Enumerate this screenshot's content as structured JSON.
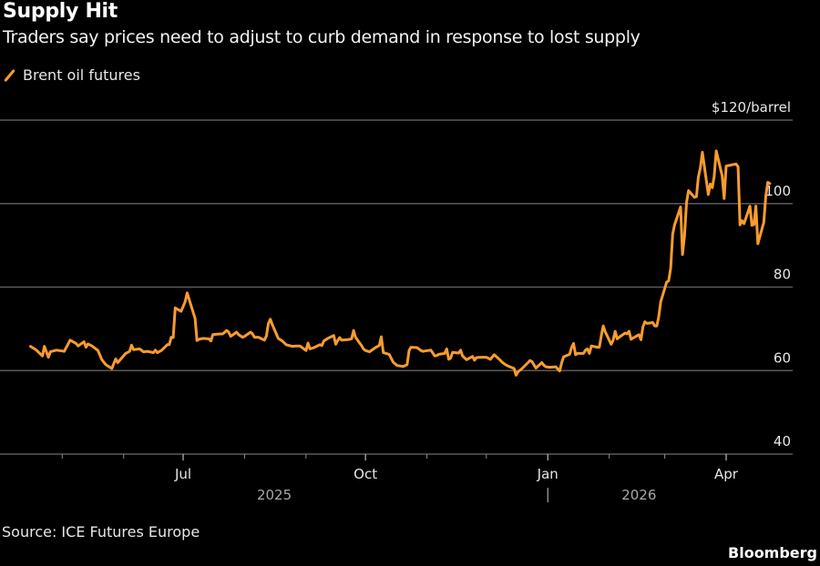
{
  "header": {
    "title": "Supply Hit",
    "subtitle": "Traders say prices need to adjust to curb demand in response to lost supply"
  },
  "footer": {
    "source": "Source: ICE Futures Europe",
    "brand": "Bloomberg"
  },
  "colors": {
    "series": "#f99b2f",
    "grid": "#5a5a5a",
    "background": "#000000"
  },
  "chart_data": {
    "type": "line",
    "title": "Supply Hit",
    "subtitle": "Traders say prices need to adjust to curb demand in response to lost supply",
    "xlabel": "",
    "ylabel": "$/barrel",
    "y_unit_label": "$120/barrel",
    "ylim": [
      40,
      120
    ],
    "yticks": [
      {
        "value": 120,
        "label": "$120/barrel"
      },
      {
        "value": 100,
        "label": "100"
      },
      {
        "value": 80,
        "label": "80"
      },
      {
        "value": 60,
        "label": "60"
      },
      {
        "value": 40,
        "label": "40"
      }
    ],
    "xlim": [
      "2025-04-13",
      "2026-04-26"
    ],
    "xticks_minor": [
      "2025-05-01",
      "2025-06-01",
      "2025-08-01",
      "2025-09-01",
      "2025-11-01",
      "2025-12-01",
      "2026-02-01",
      "2026-03-01"
    ],
    "xticks_major": [
      {
        "date": "2025-07-01",
        "label": "Jul"
      },
      {
        "date": "2025-10-01",
        "label": "Oct"
      },
      {
        "date": "2026-01-01",
        "label": "Jan"
      },
      {
        "date": "2026-04-01",
        "label": "Apr"
      }
    ],
    "year_labels": [
      {
        "date": "2025-08-16",
        "label": "2025"
      },
      {
        "date": "2026-02-16",
        "label": "2026"
      }
    ],
    "year_divider": "2026-01-01",
    "grid": true,
    "legend": {
      "position": "top-left",
      "entries": [
        "Brent oil futures"
      ]
    },
    "series": [
      {
        "name": "Brent oil futures",
        "points": [
          [
            "2025-04-15",
            65.8
          ],
          [
            "2025-04-18",
            64.9
          ],
          [
            "2025-04-21",
            63.5
          ],
          [
            "2025-04-22",
            65.8
          ],
          [
            "2025-04-24",
            63.2
          ],
          [
            "2025-04-25",
            64.5
          ],
          [
            "2025-04-28",
            64.9
          ],
          [
            "2025-05-01",
            64.7
          ],
          [
            "2025-05-02",
            64.6
          ],
          [
            "2025-05-05",
            67.3
          ],
          [
            "2025-05-08",
            66.5
          ],
          [
            "2025-05-09",
            65.9
          ],
          [
            "2025-05-12",
            66.9
          ],
          [
            "2025-05-13",
            65.6
          ],
          [
            "2025-05-14",
            66.4
          ],
          [
            "2025-05-16",
            65.9
          ],
          [
            "2025-05-19",
            64.8
          ],
          [
            "2025-05-21",
            62.6
          ],
          [
            "2025-05-23",
            61.4
          ],
          [
            "2025-05-26",
            60.5
          ],
          [
            "2025-05-28",
            62.8
          ],
          [
            "2025-05-29",
            61.9
          ],
          [
            "2025-06-02",
            64.1
          ],
          [
            "2025-06-04",
            64.6
          ],
          [
            "2025-06-05",
            66.1
          ],
          [
            "2025-06-06",
            65.0
          ],
          [
            "2025-06-09",
            65.2
          ],
          [
            "2025-06-11",
            64.5
          ],
          [
            "2025-06-13",
            64.6
          ],
          [
            "2025-06-16",
            64.3
          ],
          [
            "2025-06-17",
            64.9
          ],
          [
            "2025-06-18",
            64.3
          ],
          [
            "2025-06-20",
            64.8
          ],
          [
            "2025-06-23",
            66.2
          ],
          [
            "2025-06-24",
            66.2
          ],
          [
            "2025-06-25",
            68.0
          ],
          [
            "2025-06-26",
            67.9
          ],
          [
            "2025-06-27",
            75.0
          ],
          [
            "2025-06-30",
            74.2
          ],
          [
            "2025-07-02",
            76.5
          ],
          [
            "2025-07-03",
            78.6
          ],
          [
            "2025-07-07",
            72.5
          ],
          [
            "2025-07-08",
            67.2
          ],
          [
            "2025-07-09",
            67.5
          ],
          [
            "2025-07-11",
            67.7
          ],
          [
            "2025-07-14",
            67.6
          ],
          [
            "2025-07-15",
            67.1
          ],
          [
            "2025-07-16",
            68.6
          ],
          [
            "2025-07-18",
            68.7
          ],
          [
            "2025-07-21",
            68.8
          ],
          [
            "2025-07-23",
            69.6
          ],
          [
            "2025-07-24",
            69.2
          ],
          [
            "2025-07-25",
            68.2
          ],
          [
            "2025-07-28",
            69.2
          ],
          [
            "2025-07-29",
            68.6
          ],
          [
            "2025-07-31",
            68.0
          ],
          [
            "2025-08-01",
            68.2
          ],
          [
            "2025-08-04",
            69.2
          ],
          [
            "2025-08-05",
            68.8
          ],
          [
            "2025-08-06",
            68.0
          ],
          [
            "2025-08-08",
            68.0
          ],
          [
            "2025-08-11",
            67.3
          ],
          [
            "2025-08-12",
            68.3
          ],
          [
            "2025-08-13",
            71.2
          ],
          [
            "2025-08-14",
            72.3
          ],
          [
            "2025-08-15",
            71.0
          ],
          [
            "2025-08-18",
            67.7
          ],
          [
            "2025-08-20",
            67.1
          ],
          [
            "2025-08-22",
            66.2
          ],
          [
            "2025-08-25",
            65.8
          ],
          [
            "2025-08-27",
            65.9
          ],
          [
            "2025-08-29",
            65.9
          ],
          [
            "2025-09-01",
            64.8
          ],
          [
            "2025-09-02",
            66.6
          ],
          [
            "2025-09-03",
            65.2
          ],
          [
            "2025-09-05",
            65.5
          ],
          [
            "2025-09-08",
            66.2
          ],
          [
            "2025-09-09",
            66.0
          ],
          [
            "2025-09-10",
            67.1
          ],
          [
            "2025-09-12",
            67.7
          ],
          [
            "2025-09-15",
            68.4
          ],
          [
            "2025-09-16",
            66.3
          ],
          [
            "2025-09-17",
            67.2
          ],
          [
            "2025-09-18",
            67.9
          ],
          [
            "2025-09-19",
            67.3
          ],
          [
            "2025-09-22",
            67.4
          ],
          [
            "2025-09-24",
            67.6
          ],
          [
            "2025-09-25",
            69.6
          ],
          [
            "2025-09-26",
            68.0
          ],
          [
            "2025-09-29",
            66.0
          ],
          [
            "2025-09-30",
            65.2
          ],
          [
            "2025-10-01",
            64.8
          ],
          [
            "2025-10-03",
            64.5
          ],
          [
            "2025-10-06",
            65.5
          ],
          [
            "2025-10-08",
            66.0
          ],
          [
            "2025-10-09",
            68.1
          ],
          [
            "2025-10-10",
            64.3
          ],
          [
            "2025-10-13",
            63.9
          ],
          [
            "2025-10-15",
            62.0
          ],
          [
            "2025-10-17",
            61.2
          ],
          [
            "2025-10-20",
            61.0
          ],
          [
            "2025-10-22",
            61.4
          ],
          [
            "2025-10-23",
            64.8
          ],
          [
            "2025-10-24",
            65.6
          ],
          [
            "2025-10-27",
            65.5
          ],
          [
            "2025-10-29",
            64.8
          ],
          [
            "2025-10-30",
            64.6
          ],
          [
            "2025-10-31",
            64.7
          ],
          [
            "2025-11-03",
            64.9
          ],
          [
            "2025-11-05",
            63.5
          ],
          [
            "2025-11-06",
            63.6
          ],
          [
            "2025-11-07",
            63.9
          ],
          [
            "2025-11-10",
            64.1
          ],
          [
            "2025-11-11",
            65.2
          ],
          [
            "2025-11-12",
            62.7
          ],
          [
            "2025-11-13",
            63.0
          ],
          [
            "2025-11-14",
            64.4
          ],
          [
            "2025-11-17",
            64.2
          ],
          [
            "2025-11-18",
            64.9
          ],
          [
            "2025-11-19",
            63.5
          ],
          [
            "2025-11-21",
            62.6
          ],
          [
            "2025-11-24",
            63.4
          ],
          [
            "2025-11-25",
            62.5
          ],
          [
            "2025-11-26",
            63.1
          ],
          [
            "2025-11-28",
            63.2
          ],
          [
            "2025-12-01",
            63.2
          ],
          [
            "2025-12-03",
            62.7
          ],
          [
            "2025-12-05",
            63.8
          ],
          [
            "2025-12-08",
            62.5
          ],
          [
            "2025-12-09",
            62.0
          ],
          [
            "2025-12-11",
            61.3
          ],
          [
            "2025-12-12",
            61.1
          ],
          [
            "2025-12-15",
            60.5
          ],
          [
            "2025-12-16",
            58.9
          ],
          [
            "2025-12-17",
            59.7
          ],
          [
            "2025-12-19",
            60.5
          ],
          [
            "2025-12-22",
            61.9
          ],
          [
            "2025-12-23",
            62.4
          ],
          [
            "2025-12-24",
            62.2
          ],
          [
            "2025-12-26",
            60.6
          ],
          [
            "2025-12-29",
            61.9
          ],
          [
            "2025-12-30",
            61.3
          ],
          [
            "2025-12-31",
            60.9
          ],
          [
            "2026-01-02",
            60.8
          ],
          [
            "2026-01-05",
            60.9
          ],
          [
            "2026-01-06",
            60.4
          ],
          [
            "2026-01-07",
            59.9
          ],
          [
            "2026-01-08",
            61.9
          ],
          [
            "2026-01-09",
            63.3
          ],
          [
            "2026-01-12",
            63.9
          ],
          [
            "2026-01-13",
            65.5
          ],
          [
            "2026-01-14",
            66.5
          ],
          [
            "2026-01-15",
            63.8
          ],
          [
            "2026-01-16",
            64.1
          ],
          [
            "2026-01-19",
            64.1
          ],
          [
            "2026-01-20",
            64.9
          ],
          [
            "2026-01-21",
            65.2
          ],
          [
            "2026-01-22",
            64.1
          ],
          [
            "2026-01-23",
            65.9
          ],
          [
            "2026-01-26",
            65.6
          ],
          [
            "2026-01-27",
            65.6
          ],
          [
            "2026-01-28",
            68.4
          ],
          [
            "2026-01-29",
            70.7
          ],
          [
            "2026-01-30",
            69.3
          ],
          [
            "2026-02-02",
            66.3
          ],
          [
            "2026-02-03",
            67.3
          ],
          [
            "2026-02-04",
            69.4
          ],
          [
            "2026-02-05",
            67.6
          ],
          [
            "2026-02-06",
            68.0
          ],
          [
            "2026-02-09",
            69.0
          ],
          [
            "2026-02-10",
            68.8
          ],
          [
            "2026-02-11",
            69.4
          ],
          [
            "2026-02-12",
            67.5
          ],
          [
            "2026-02-13",
            67.8
          ],
          [
            "2026-02-16",
            68.6
          ],
          [
            "2026-02-17",
            67.4
          ],
          [
            "2026-02-18",
            70.4
          ],
          [
            "2026-02-19",
            71.7
          ],
          [
            "2026-02-20",
            71.3
          ],
          [
            "2026-02-23",
            71.5
          ],
          [
            "2026-02-24",
            70.7
          ],
          [
            "2026-02-25",
            70.7
          ],
          [
            "2026-02-26",
            72.9
          ],
          [
            "2026-02-27",
            76.5
          ],
          [
            "2026-03-02",
            81.2
          ],
          [
            "2026-03-03",
            81.5
          ],
          [
            "2026-03-04",
            84.5
          ],
          [
            "2026-03-05",
            92.7
          ],
          [
            "2026-03-06",
            94.9
          ],
          [
            "2026-03-09",
            99.2
          ],
          [
            "2026-03-10",
            87.8
          ],
          [
            "2026-03-11",
            92.3
          ],
          [
            "2026-03-12",
            100.2
          ],
          [
            "2026-03-13",
            103.1
          ],
          [
            "2026-03-16",
            101.5
          ],
          [
            "2026-03-17",
            101.7
          ],
          [
            "2026-03-18",
            106.4
          ],
          [
            "2026-03-19",
            108.6
          ],
          [
            "2026-03-20",
            112.3
          ],
          [
            "2026-03-23",
            102.2
          ],
          [
            "2026-03-24",
            104.7
          ],
          [
            "2026-03-25",
            103.8
          ],
          [
            "2026-03-26",
            106.6
          ],
          [
            "2026-03-27",
            112.6
          ],
          [
            "2026-03-30",
            106.7
          ],
          [
            "2026-03-31",
            101.2
          ],
          [
            "2026-04-01",
            109.0
          ],
          [
            "2026-04-02",
            109.1
          ],
          [
            "2026-04-06",
            109.5
          ],
          [
            "2026-04-07",
            108.8
          ],
          [
            "2026-04-08",
            94.9
          ],
          [
            "2026-04-09",
            95.9
          ],
          [
            "2026-04-10",
            95.2
          ],
          [
            "2026-04-13",
            99.4
          ],
          [
            "2026-04-14",
            94.8
          ],
          [
            "2026-04-15",
            95.0
          ],
          [
            "2026-04-16",
            99.4
          ],
          [
            "2026-04-17",
            90.4
          ],
          [
            "2026-04-20",
            95.5
          ],
          [
            "2026-04-21",
            101.8
          ],
          [
            "2026-04-22",
            105.1
          ],
          [
            "2026-04-23",
            104.8
          ]
        ]
      }
    ]
  }
}
